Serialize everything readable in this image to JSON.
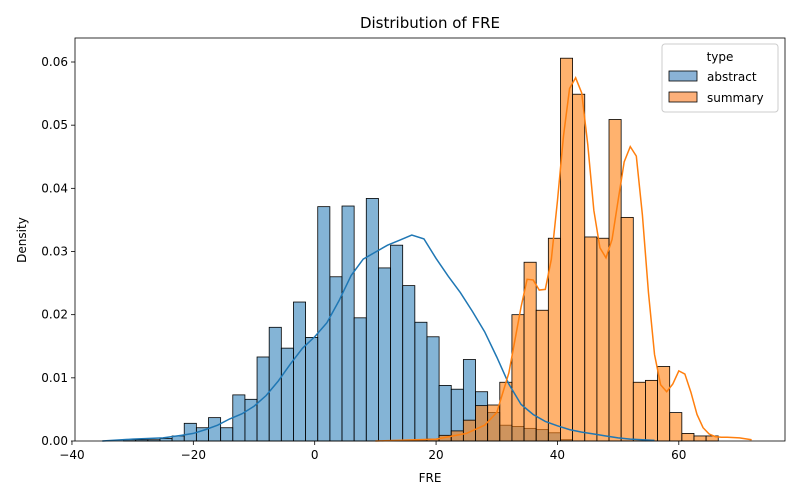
{
  "chart_data": {
    "type": "histogram",
    "title": "Distribution of FRE",
    "xlabel": "FRE",
    "ylabel": "Density",
    "xlim": [
      -39.5,
      77.5
    ],
    "ylim": [
      0,
      0.0638
    ],
    "xticks": [
      -40,
      -20,
      0,
      20,
      40,
      60
    ],
    "xtick_labels": [
      "−40",
      "−20",
      "0",
      "20",
      "40",
      "60"
    ],
    "yticks": [
      0,
      0.01,
      0.02,
      0.03,
      0.04,
      0.05,
      0.06
    ],
    "ytick_labels": [
      "0.00",
      "0.01",
      "0.02",
      "0.03",
      "0.04",
      "0.05",
      "0.06"
    ],
    "grid": false,
    "legend": {
      "title": "type",
      "placement": "top-right"
    },
    "bin_edges": [
      -35.5,
      -33.5,
      -31.5,
      -29.5,
      -27.5,
      -25.5,
      -23.5,
      -21.5,
      -19.5,
      -17.5,
      -15.5,
      -13.5,
      -11.5,
      -9.5,
      -7.5,
      -5.5,
      -3.5,
      -1.5,
      0.5,
      2.5,
      4.5,
      6.5,
      8.5,
      10.5,
      12.5,
      14.5,
      16.5,
      18.5,
      20.5,
      22.5,
      24.5,
      26.5,
      28.5,
      30.5,
      32.5,
      34.5,
      36.5,
      38.5,
      40.5,
      42.5,
      44.5,
      46.5,
      48.5,
      50.5,
      52.5,
      54.5,
      56.5,
      58.5,
      60.5,
      62.5,
      64.5,
      66.5,
      68.5,
      70.5,
      72.5
    ],
    "series": [
      {
        "name": "abstract",
        "color": "#1f77b4",
        "fill": "#8ab2d6",
        "densities": [
          0,
          0,
          0.0002,
          0.0002,
          0.0002,
          0.0004,
          0.0008,
          0.0028,
          0.0021,
          0.0037,
          0.0021,
          0.0073,
          0.0066,
          0.0133,
          0.018,
          0.0147,
          0.022,
          0.0164,
          0.0371,
          0.026,
          0.0372,
          0.0195,
          0.0384,
          0.0274,
          0.031,
          0.0246,
          0.0188,
          0.0165,
          0.0088,
          0.0082,
          0.0129,
          0.0078,
          0.0045,
          0.0025,
          0.0023,
          0.002,
          0.0018,
          0.0013,
          0.0002,
          0,
          0,
          0,
          0,
          0,
          0,
          0,
          0,
          0,
          0,
          0,
          0,
          0,
          0,
          0
        ],
        "kde_x": [
          -35,
          -30,
          -25,
          -22,
          -20,
          -18,
          -16,
          -14,
          -12,
          -10,
          -8,
          -6,
          -4,
          -2,
          0,
          2,
          4,
          6,
          8,
          10,
          12,
          14,
          16,
          18,
          20,
          22,
          24,
          26,
          28,
          30,
          32,
          34,
          36,
          38,
          40,
          42,
          44,
          46,
          48,
          50,
          52,
          54,
          56
        ],
        "kde_y": [
          0,
          0.0003,
          0.0005,
          0.0009,
          0.0012,
          0.0018,
          0.0025,
          0.0035,
          0.0043,
          0.0055,
          0.0072,
          0.0095,
          0.0122,
          0.0147,
          0.0165,
          0.0187,
          0.0222,
          0.0262,
          0.0288,
          0.0299,
          0.031,
          0.0318,
          0.0326,
          0.032,
          0.0289,
          0.0261,
          0.0235,
          0.0205,
          0.0173,
          0.0133,
          0.009,
          0.0058,
          0.0042,
          0.0031,
          0.0024,
          0.0018,
          0.0014,
          0.0011,
          0.0008,
          0.0005,
          0.0003,
          0.0002,
          0.0001
        ]
      },
      {
        "name": "summary",
        "color": "#ff7f0e",
        "fill": "#fdb07a",
        "densities": [
          0,
          0,
          0,
          0,
          0,
          0,
          0,
          0,
          0,
          0,
          0,
          0,
          0,
          0,
          0,
          0,
          0,
          0,
          0,
          0,
          0,
          0,
          0,
          0,
          0.0001,
          0.0001,
          0.0002,
          0.0003,
          0.0009,
          0.0016,
          0.0033,
          0.0056,
          0.0057,
          0.0093,
          0.02,
          0.0283,
          0.0207,
          0.0321,
          0.0606,
          0.0549,
          0.0323,
          0.0321,
          0.0509,
          0.0354,
          0.0093,
          0.0096,
          0.0118,
          0.0045,
          0.0012,
          0.0008,
          0.0008,
          0,
          0,
          0
        ],
        "kde_x": [
          10,
          20,
          25,
          28,
          30,
          32,
          33,
          34,
          35,
          36,
          37,
          38,
          39,
          40,
          41,
          42,
          43,
          44,
          45,
          46,
          47,
          48,
          49,
          50,
          51,
          52,
          53,
          54,
          55,
          56,
          57,
          58,
          59,
          60,
          61,
          62,
          63,
          64,
          65,
          66,
          67,
          68,
          70,
          72
        ],
        "kde_y": [
          0,
          0.0003,
          0.0012,
          0.0025,
          0.0045,
          0.0108,
          0.016,
          0.0212,
          0.0256,
          0.0255,
          0.0239,
          0.024,
          0.0288,
          0.038,
          0.0483,
          0.0558,
          0.0575,
          0.0551,
          0.0469,
          0.0365,
          0.0306,
          0.029,
          0.0319,
          0.0381,
          0.0442,
          0.0466,
          0.0451,
          0.0358,
          0.0235,
          0.0137,
          0.0089,
          0.0078,
          0.009,
          0.0111,
          0.0106,
          0.0077,
          0.0042,
          0.0021,
          0.0011,
          0.0007,
          0.0006,
          0.0006,
          0.0005,
          0.0002
        ]
      }
    ]
  }
}
